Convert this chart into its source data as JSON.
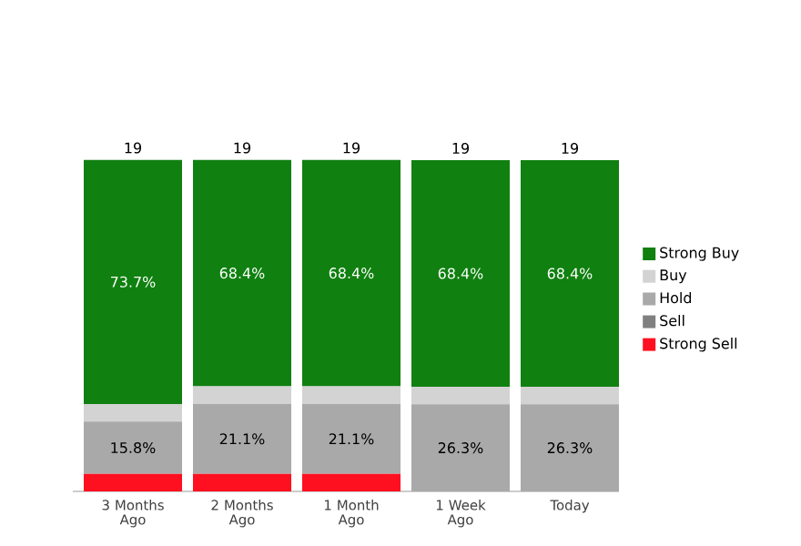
{
  "chart_data": {
    "type": "bar",
    "stacked": true,
    "legend": "right",
    "categories": [
      "3 Months Ago",
      "2 Months Ago",
      "1 Month Ago",
      "1 Week Ago",
      "Today"
    ],
    "series": [
      {
        "name": "Strong Sell",
        "color": "#ff1020",
        "values": [
          5.3,
          5.3,
          5.3,
          0,
          0
        ],
        "value_labels": [
          null,
          null,
          null,
          null,
          null
        ]
      },
      {
        "name": "Sell",
        "color": "#808080",
        "values": [
          0,
          0,
          0,
          0,
          0
        ],
        "value_labels": [
          null,
          null,
          null,
          null,
          null
        ]
      },
      {
        "name": "Hold",
        "color": "#a9a9a9",
        "values": [
          15.8,
          21.1,
          21.1,
          26.3,
          26.3
        ],
        "value_labels": [
          "15.8%",
          "21.1%",
          "21.1%",
          "26.3%",
          "26.3%"
        ]
      },
      {
        "name": "Buy",
        "color": "#d3d3d3",
        "values": [
          5.3,
          5.3,
          5.3,
          5.3,
          5.3
        ],
        "value_labels": [
          null,
          null,
          null,
          null,
          null
        ]
      },
      {
        "name": "Strong Buy",
        "color": "#108010",
        "values": [
          73.7,
          68.4,
          68.4,
          68.4,
          68.4
        ],
        "value_labels": [
          "73.7%",
          "68.4%",
          "68.4%",
          "68.4%",
          "68.4%"
        ]
      }
    ],
    "annotations": [
      {
        "text": "19",
        "x": "3 Months Ago",
        "y": 100.1
      },
      {
        "text": "19",
        "x": "2 Months Ago",
        "y": 100.1
      },
      {
        "text": "19",
        "x": "1 Month Ago",
        "y": 100.1
      },
      {
        "text": "19",
        "x": "1 Week Ago",
        "y": 100
      },
      {
        "text": "19",
        "x": "Today",
        "y": 100
      }
    ]
  }
}
